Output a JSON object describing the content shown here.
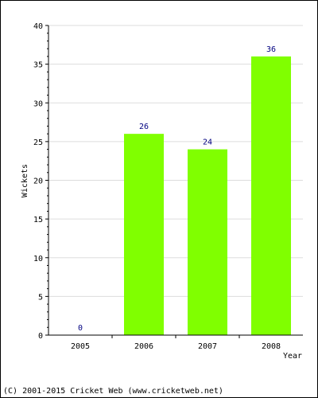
{
  "chart_data": {
    "type": "bar",
    "categories": [
      "2005",
      "2006",
      "2007",
      "2008"
    ],
    "values": [
      0,
      26,
      24,
      36
    ],
    "title": "",
    "xlabel": "Year",
    "ylabel": "Wickets",
    "ylim": [
      0,
      40
    ],
    "yticks": [
      "0",
      "5",
      "10",
      "15",
      "20",
      "25",
      "30",
      "35",
      "40"
    ],
    "grid": true,
    "legend": "none",
    "bar_color": "#80ff00",
    "label_color": "#000080",
    "grid_color": "#dddddd"
  },
  "footer": {
    "text": "(C) 2001-2015 Cricket Web (www.cricketweb.net)"
  }
}
